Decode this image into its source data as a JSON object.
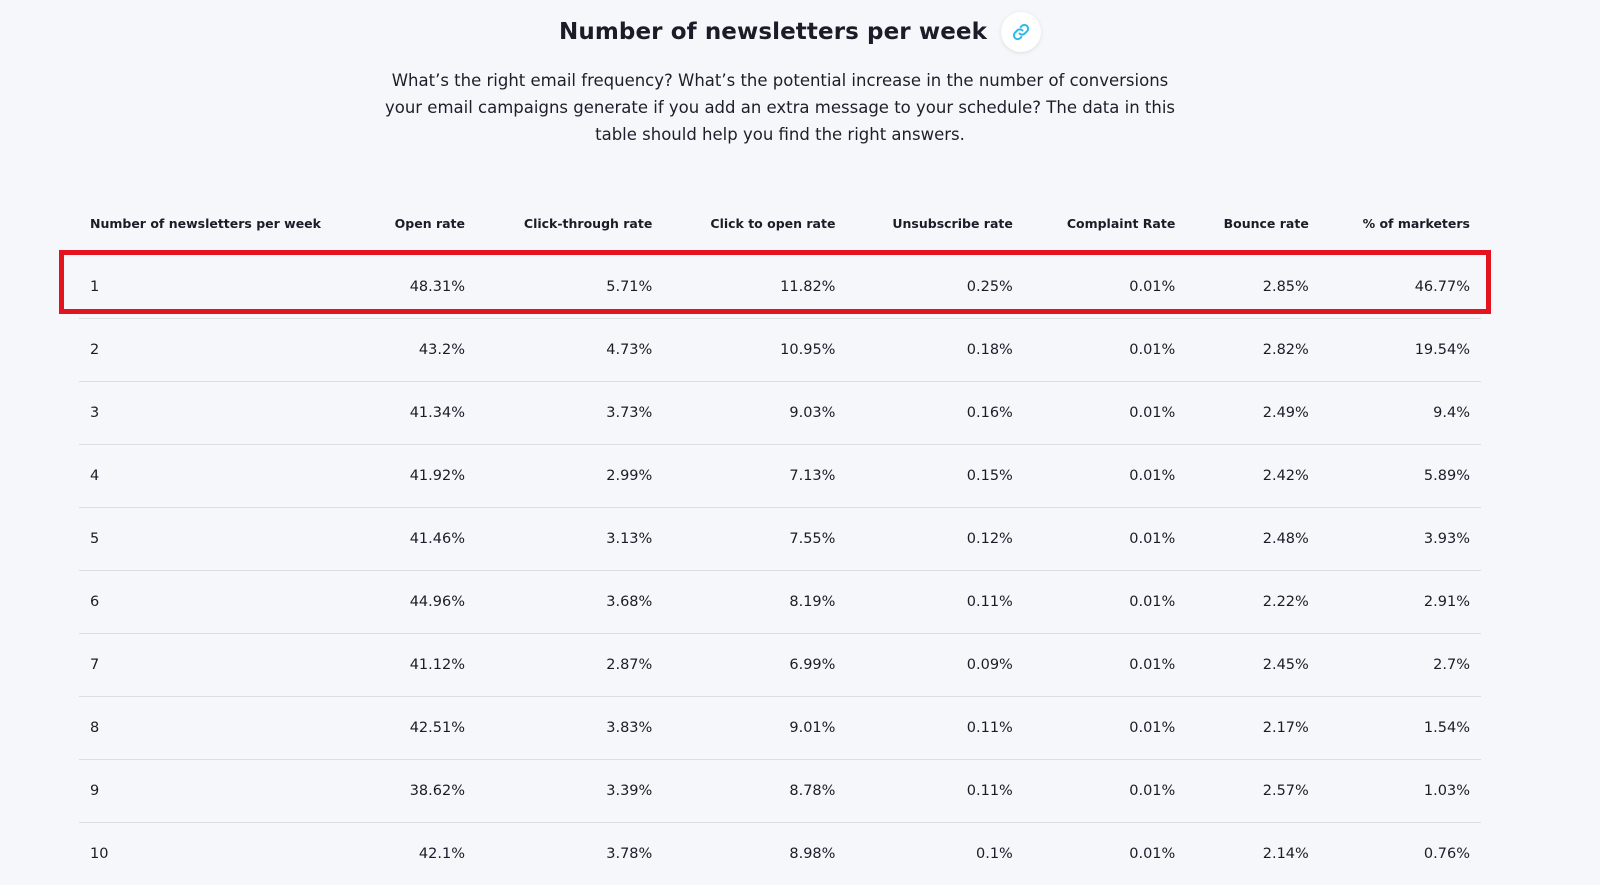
{
  "section": {
    "title": "Number of newsletters per week",
    "link_icon": "link-icon",
    "description": "What’s the right email frequency? What’s the potential increase in the number of conversions your email campaigns generate if you add an extra message to your schedule? The data in this table should help you find the right answers."
  },
  "table": {
    "headers": [
      "Number of newsletters per week",
      "Open rate",
      "Click-through rate",
      "Click to open rate",
      "Unsubscribe rate",
      "Complaint Rate",
      "Bounce rate",
      "% of marketers"
    ],
    "rows": [
      [
        "1",
        "48.31%",
        "5.71%",
        "11.82%",
        "0.25%",
        "0.01%",
        "2.85%",
        "46.77%"
      ],
      [
        "2",
        "43.2%",
        "4.73%",
        "10.95%",
        "0.18%",
        "0.01%",
        "2.82%",
        "19.54%"
      ],
      [
        "3",
        "41.34%",
        "3.73%",
        "9.03%",
        "0.16%",
        "0.01%",
        "2.49%",
        "9.4%"
      ],
      [
        "4",
        "41.92%",
        "2.99%",
        "7.13%",
        "0.15%",
        "0.01%",
        "2.42%",
        "5.89%"
      ],
      [
        "5",
        "41.46%",
        "3.13%",
        "7.55%",
        "0.12%",
        "0.01%",
        "2.48%",
        "3.93%"
      ],
      [
        "6",
        "44.96%",
        "3.68%",
        "8.19%",
        "0.11%",
        "0.01%",
        "2.22%",
        "2.91%"
      ],
      [
        "7",
        "41.12%",
        "2.87%",
        "6.99%",
        "0.09%",
        "0.01%",
        "2.45%",
        "2.7%"
      ],
      [
        "8",
        "42.51%",
        "3.83%",
        "9.01%",
        "0.11%",
        "0.01%",
        "2.17%",
        "1.54%"
      ],
      [
        "9",
        "38.62%",
        "3.39%",
        "8.78%",
        "0.11%",
        "0.01%",
        "2.57%",
        "1.03%"
      ],
      [
        "10",
        "42.1%",
        "3.78%",
        "8.98%",
        "0.1%",
        "0.01%",
        "2.14%",
        "0.76%"
      ]
    ]
  },
  "highlight": {
    "row_index": 0,
    "color": "#e3141e"
  },
  "colors": {
    "background": "#f6f7fb",
    "link_icon": "#2fb8e8",
    "row_divider": "#dcdee4"
  }
}
